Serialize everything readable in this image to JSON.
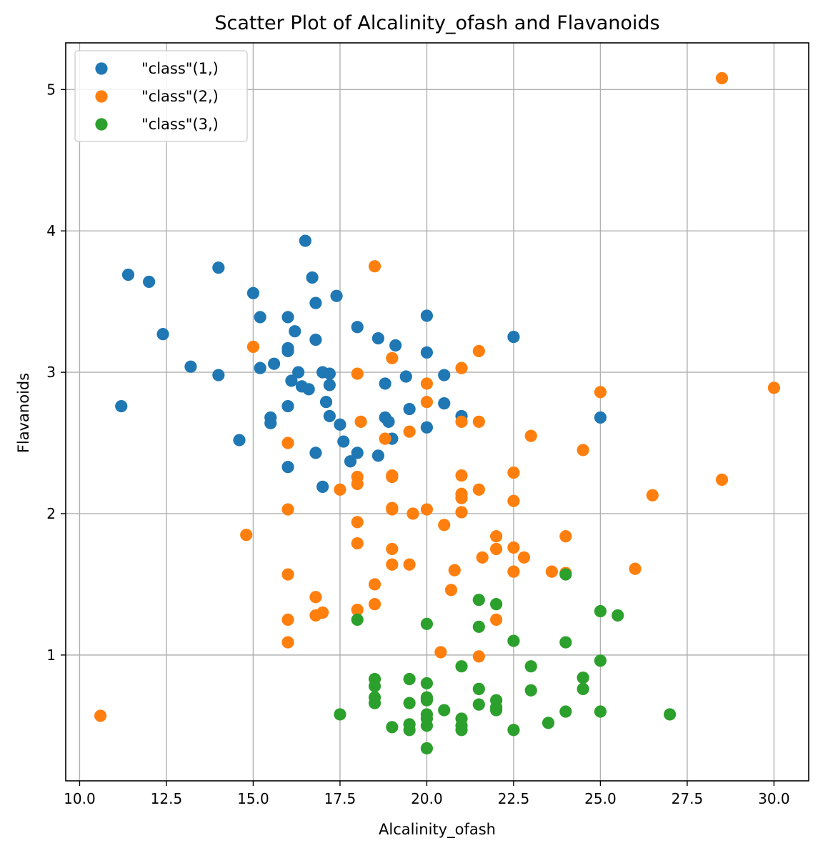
{
  "chart_data": {
    "type": "scatter",
    "title": "Scatter Plot of Alcalinity_ofash and Flavanoids",
    "xlabel": "Alcalinity_ofash",
    "ylabel": "Flavanoids",
    "xlim": [
      9.6,
      31.0
    ],
    "ylim": [
      0.11,
      5.33
    ],
    "xticks": [
      10.0,
      12.5,
      15.0,
      17.5,
      20.0,
      22.5,
      25.0,
      27.5,
      30.0
    ],
    "xtick_labels": [
      "10.0",
      "12.5",
      "15.0",
      "17.5",
      "20.0",
      "22.5",
      "25.0",
      "27.5",
      "30.0"
    ],
    "yticks": [
      1,
      2,
      3,
      4,
      5
    ],
    "ytick_labels": [
      "1",
      "2",
      "3",
      "4",
      "5"
    ],
    "grid": true,
    "legend_position": "top-left",
    "series": [
      {
        "name": "\"class\"(1,)",
        "color": "#1f77b4",
        "points": [
          [
            11.2,
            2.76
          ],
          [
            11.4,
            3.69
          ],
          [
            12.0,
            3.64
          ],
          [
            12.4,
            3.27
          ],
          [
            13.2,
            3.04
          ],
          [
            14.0,
            3.74
          ],
          [
            14.0,
            2.98
          ],
          [
            14.6,
            2.52
          ],
          [
            15.0,
            3.56
          ],
          [
            15.2,
            3.39
          ],
          [
            15.2,
            3.03
          ],
          [
            15.5,
            2.68
          ],
          [
            15.5,
            2.64
          ],
          [
            15.6,
            3.06
          ],
          [
            16.0,
            3.39
          ],
          [
            16.0,
            3.17
          ],
          [
            16.0,
            3.15
          ],
          [
            16.0,
            2.76
          ],
          [
            16.0,
            2.33
          ],
          [
            16.1,
            2.94
          ],
          [
            16.2,
            3.29
          ],
          [
            16.3,
            3.0
          ],
          [
            16.4,
            2.9
          ],
          [
            16.5,
            3.93
          ],
          [
            16.6,
            2.88
          ],
          [
            16.7,
            3.67
          ],
          [
            16.8,
            3.49
          ],
          [
            16.8,
            3.23
          ],
          [
            16.8,
            2.43
          ],
          [
            17.0,
            3.0
          ],
          [
            17.0,
            2.19
          ],
          [
            17.1,
            2.79
          ],
          [
            17.2,
            2.99
          ],
          [
            17.2,
            2.91
          ],
          [
            17.2,
            2.69
          ],
          [
            17.4,
            3.54
          ],
          [
            17.5,
            2.63
          ],
          [
            17.6,
            2.51
          ],
          [
            17.8,
            2.37
          ],
          [
            18.0,
            3.32
          ],
          [
            18.0,
            2.43
          ],
          [
            18.6,
            3.24
          ],
          [
            18.6,
            2.41
          ],
          [
            18.8,
            2.92
          ],
          [
            18.8,
            2.68
          ],
          [
            18.9,
            2.65
          ],
          [
            19.0,
            2.53
          ],
          [
            19.1,
            3.19
          ],
          [
            19.4,
            2.97
          ],
          [
            19.5,
            2.74
          ],
          [
            20.0,
            3.4
          ],
          [
            20.0,
            3.14
          ],
          [
            20.0,
            2.61
          ],
          [
            20.5,
            2.98
          ],
          [
            20.5,
            2.78
          ],
          [
            21.0,
            2.69
          ],
          [
            22.5,
            3.25
          ],
          [
            25.0,
            2.68
          ]
        ]
      },
      {
        "name": "\"class\"(2,)",
        "color": "#ff7f0e",
        "points": [
          [
            10.6,
            0.57
          ],
          [
            14.8,
            1.85
          ],
          [
            15.0,
            3.18
          ],
          [
            16.0,
            2.5
          ],
          [
            16.0,
            2.03
          ],
          [
            16.0,
            1.57
          ],
          [
            16.0,
            1.25
          ],
          [
            16.0,
            1.09
          ],
          [
            16.8,
            1.41
          ],
          [
            16.8,
            1.28
          ],
          [
            17.0,
            1.3
          ],
          [
            17.5,
            2.17
          ],
          [
            18.0,
            2.99
          ],
          [
            18.0,
            2.26
          ],
          [
            18.0,
            2.21
          ],
          [
            18.0,
            1.94
          ],
          [
            18.0,
            1.79
          ],
          [
            18.0,
            1.32
          ],
          [
            18.1,
            2.65
          ],
          [
            18.5,
            3.75
          ],
          [
            18.5,
            1.5
          ],
          [
            18.5,
            1.36
          ],
          [
            18.8,
            2.53
          ],
          [
            19.0,
            3.1
          ],
          [
            19.0,
            2.27
          ],
          [
            19.0,
            2.26
          ],
          [
            19.0,
            2.04
          ],
          [
            19.0,
            2.03
          ],
          [
            19.0,
            1.75
          ],
          [
            19.0,
            1.64
          ],
          [
            19.5,
            2.58
          ],
          [
            19.5,
            1.64
          ],
          [
            19.6,
            2.0
          ],
          [
            20.0,
            2.92
          ],
          [
            20.0,
            2.79
          ],
          [
            20.0,
            2.03
          ],
          [
            20.4,
            1.02
          ],
          [
            20.5,
            1.92
          ],
          [
            20.7,
            1.46
          ],
          [
            20.8,
            1.6
          ],
          [
            21.0,
            3.03
          ],
          [
            21.0,
            2.65
          ],
          [
            21.0,
            2.27
          ],
          [
            21.0,
            2.14
          ],
          [
            21.0,
            2.11
          ],
          [
            21.0,
            2.01
          ],
          [
            21.5,
            3.15
          ],
          [
            21.5,
            2.65
          ],
          [
            21.5,
            2.17
          ],
          [
            21.5,
            0.99
          ],
          [
            21.6,
            1.69
          ],
          [
            22.0,
            1.84
          ],
          [
            22.0,
            1.75
          ],
          [
            22.0,
            1.25
          ],
          [
            22.5,
            2.29
          ],
          [
            22.5,
            2.09
          ],
          [
            22.5,
            1.76
          ],
          [
            22.5,
            1.59
          ],
          [
            22.8,
            1.69
          ],
          [
            23.0,
            2.55
          ],
          [
            23.6,
            1.59
          ],
          [
            24.0,
            1.84
          ],
          [
            24.0,
            1.58
          ],
          [
            24.5,
            2.45
          ],
          [
            25.0,
            2.86
          ],
          [
            26.0,
            1.61
          ],
          [
            26.5,
            2.13
          ],
          [
            28.5,
            5.08
          ],
          [
            28.5,
            2.24
          ],
          [
            30.0,
            2.89
          ]
        ]
      },
      {
        "name": "\"class\"(3,)",
        "color": "#2ca02c",
        "points": [
          [
            17.5,
            0.58
          ],
          [
            18.0,
            1.25
          ],
          [
            18.5,
            0.83
          ],
          [
            18.5,
            0.78
          ],
          [
            18.5,
            0.7
          ],
          [
            18.5,
            0.66
          ],
          [
            19.0,
            0.49
          ],
          [
            19.5,
            0.83
          ],
          [
            19.5,
            0.66
          ],
          [
            19.5,
            0.51
          ],
          [
            19.5,
            0.47
          ],
          [
            20.0,
            1.22
          ],
          [
            20.0,
            0.8
          ],
          [
            20.0,
            0.7
          ],
          [
            20.0,
            0.68
          ],
          [
            20.0,
            0.58
          ],
          [
            20.0,
            0.55
          ],
          [
            20.0,
            0.5
          ],
          [
            20.0,
            0.34
          ],
          [
            20.5,
            0.61
          ],
          [
            21.0,
            0.92
          ],
          [
            21.0,
            0.55
          ],
          [
            21.0,
            0.5
          ],
          [
            21.0,
            0.47
          ],
          [
            21.5,
            1.39
          ],
          [
            21.5,
            1.2
          ],
          [
            21.5,
            0.76
          ],
          [
            21.5,
            0.65
          ],
          [
            22.0,
            1.36
          ],
          [
            22.0,
            0.68
          ],
          [
            22.0,
            0.63
          ],
          [
            22.0,
            0.61
          ],
          [
            22.5,
            1.1
          ],
          [
            22.5,
            0.47
          ],
          [
            23.0,
            0.92
          ],
          [
            23.0,
            0.75
          ],
          [
            23.5,
            0.52
          ],
          [
            24.0,
            1.57
          ],
          [
            24.0,
            1.09
          ],
          [
            24.0,
            0.6
          ],
          [
            24.5,
            0.84
          ],
          [
            24.5,
            0.76
          ],
          [
            25.0,
            1.31
          ],
          [
            25.0,
            0.96
          ],
          [
            25.0,
            0.6
          ],
          [
            25.5,
            1.28
          ],
          [
            27.0,
            0.58
          ]
        ]
      }
    ]
  }
}
